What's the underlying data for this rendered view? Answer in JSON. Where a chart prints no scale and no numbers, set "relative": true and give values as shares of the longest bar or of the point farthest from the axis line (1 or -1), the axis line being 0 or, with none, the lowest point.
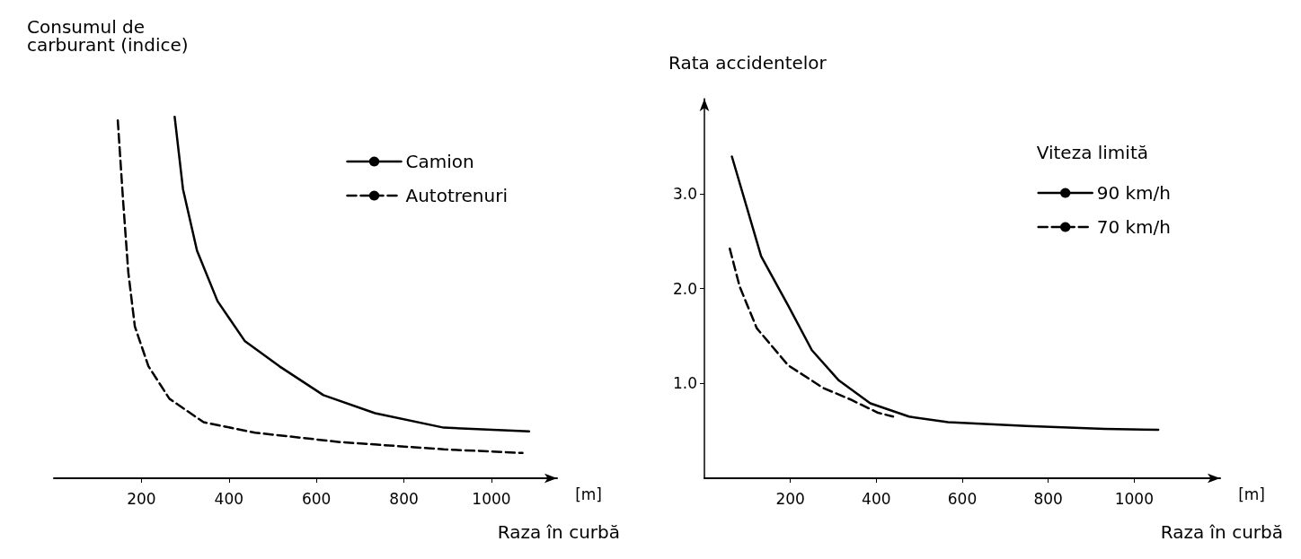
{
  "chart_data": [
    {
      "type": "line",
      "ylabel": "Consumul de\ncarburant (indice)",
      "xlabel": "Raza în curbă",
      "annotations": [
        "[m]"
      ],
      "relative": true,
      "xlim": [
        0,
        1150
      ],
      "xticks": [
        200,
        400,
        600,
        800,
        1000
      ],
      "grid": false,
      "legend": "top right",
      "marker": "none",
      "series": [
        {
          "name": "Camion",
          "color": "#000000",
          "line_style": "solid",
          "x": [
            276,
            295,
            327,
            374,
            436,
            515,
            616,
            734,
            891,
            1086
          ],
          "values": [
            1,
            0.8,
            0.63,
            0.49,
            0.38,
            0.31,
            0.23,
            0.18,
            0.14,
            0.13
          ]
        },
        {
          "name": "Autotrenuri",
          "color": "#000000",
          "line_style": "dashed",
          "x": [
            146,
            158,
            170,
            185,
            216,
            264,
            342,
            460,
            655,
            891,
            1071
          ],
          "values": [
            0.99,
            0.77,
            0.57,
            0.42,
            0.31,
            0.22,
            0.155,
            0.126,
            0.1,
            0.08,
            0.07
          ]
        }
      ]
    },
    {
      "type": "line",
      "ylabel": "Rata accidentelor",
      "xlabel": "Raza în curbă",
      "legend_title": "Viteza limită",
      "annotations": [
        "[m]"
      ],
      "xlim": [
        0,
        1200
      ],
      "xticks": [
        200,
        400,
        600,
        800,
        1000
      ],
      "ylim": [
        0,
        4
      ],
      "yticks": [
        {
          "value": 1,
          "label": "1.0"
        },
        {
          "value": 2,
          "label": "2.0"
        },
        {
          "value": 3,
          "label": "3.0"
        }
      ],
      "grid": false,
      "legend": "top right",
      "marker": "none",
      "series": [
        {
          "name": "90 km/h",
          "color": "#000000",
          "line_style": "solid",
          "x": [
            64,
            132,
            195,
            250,
            313,
            386,
            476,
            567,
            749,
            931,
            1056
          ],
          "values": [
            3.39,
            2.34,
            1.82,
            1.35,
            1.03,
            0.79,
            0.65,
            0.59,
            0.55,
            0.52,
            0.51
          ]
        },
        {
          "name": "70 km/h",
          "color": "#000000",
          "line_style": "dashed",
          "x": [
            59,
            82,
            122,
            195,
            277,
            340,
            404,
            439
          ],
          "values": [
            2.42,
            2.02,
            1.58,
            1.19,
            0.95,
            0.83,
            0.69,
            0.65
          ]
        }
      ]
    }
  ]
}
